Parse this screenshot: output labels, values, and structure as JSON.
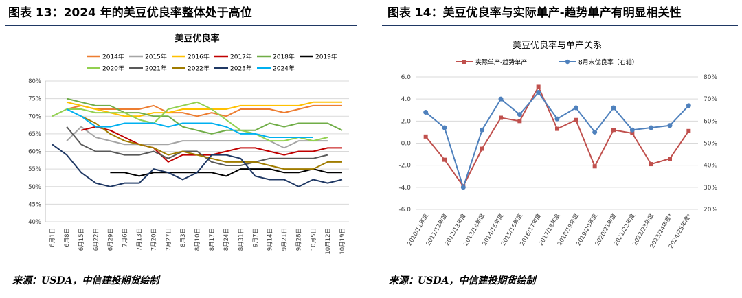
{
  "left": {
    "heading": "图表 13：2024 年的美豆优良率整体处于高位",
    "source": "来源：USDA，中信建投期货绘制",
    "chart_data": {
      "type": "line",
      "title": "美豆优良率",
      "yticks": [
        "40%",
        "45%",
        "50%",
        "55%",
        "60%",
        "65%",
        "70%",
        "75%",
        "80%"
      ],
      "ylim": [
        0.4,
        0.8
      ],
      "categories": [
        "6月1日",
        "6月8日",
        "6月15日",
        "6月22日",
        "6月29日",
        "7月6日",
        "7月13日",
        "7月20日",
        "7月27日",
        "8月3日",
        "8月10日",
        "8月17日",
        "8月24日",
        "8月31日",
        "9月7日",
        "9月14日",
        "9月21日",
        "9月28日",
        "10月5日",
        "10月12日",
        "10月19日"
      ],
      "legend_position": "top",
      "series": [
        {
          "name": "2014年",
          "color": "#ed7d31",
          "values": [
            null,
            0.72,
            0.73,
            0.72,
            0.72,
            0.72,
            0.72,
            0.73,
            0.71,
            0.71,
            0.7,
            0.71,
            0.7,
            0.72,
            0.72,
            0.72,
            0.71,
            0.72,
            0.73,
            0.73,
            0.73
          ]
        },
        {
          "name": "2015年",
          "color": "#a5a5a5",
          "values": [
            null,
            0.63,
            0.67,
            0.64,
            0.63,
            0.62,
            0.62,
            0.62,
            0.62,
            0.63,
            0.63,
            0.63,
            0.63,
            0.63,
            0.63,
            0.63,
            0.61,
            0.63,
            0.63,
            0.63,
            null
          ]
        },
        {
          "name": "2016年",
          "color": "#ffc000",
          "values": [
            null,
            0.74,
            0.73,
            0.72,
            0.71,
            0.7,
            0.7,
            0.71,
            0.71,
            0.72,
            0.72,
            0.72,
            0.72,
            0.73,
            0.73,
            0.73,
            0.73,
            0.73,
            0.74,
            0.74,
            0.74
          ]
        },
        {
          "name": "2017年",
          "color": "#c00000",
          "values": [
            null,
            null,
            0.66,
            0.67,
            0.66,
            0.64,
            0.62,
            0.61,
            0.57,
            0.59,
            0.59,
            0.59,
            0.6,
            0.61,
            0.61,
            0.6,
            0.59,
            0.6,
            0.6,
            0.61,
            0.61
          ]
        },
        {
          "name": "2018年",
          "color": "#70ad47",
          "values": [
            null,
            0.75,
            0.74,
            0.73,
            0.73,
            0.71,
            0.71,
            0.7,
            0.7,
            0.67,
            0.66,
            0.65,
            0.66,
            0.66,
            0.66,
            0.68,
            0.67,
            0.68,
            0.68,
            0.68,
            0.66
          ]
        },
        {
          "name": "2019年",
          "color": "#000000",
          "values": [
            null,
            null,
            null,
            null,
            0.54,
            0.54,
            0.53,
            0.54,
            0.54,
            0.54,
            0.54,
            0.54,
            0.53,
            0.55,
            0.55,
            0.55,
            0.54,
            0.54,
            0.55,
            0.54,
            0.54
          ]
        },
        {
          "name": "2020年",
          "color": "#92d050",
          "values": [
            0.7,
            0.72,
            0.72,
            0.71,
            0.71,
            0.71,
            0.69,
            0.68,
            0.72,
            0.73,
            0.74,
            0.72,
            0.69,
            0.66,
            0.65,
            0.63,
            0.63,
            0.64,
            0.63,
            0.64,
            null
          ]
        },
        {
          "name": "2021年",
          "color": "#595959",
          "values": [
            null,
            0.67,
            0.62,
            0.6,
            0.6,
            0.59,
            0.59,
            0.6,
            0.58,
            0.6,
            0.6,
            0.57,
            0.56,
            0.56,
            0.57,
            0.58,
            0.58,
            0.58,
            0.58,
            0.59,
            null
          ]
        },
        {
          "name": "2022年",
          "color": "#a07c00",
          "values": [
            null,
            null,
            0.7,
            0.68,
            0.65,
            0.63,
            0.62,
            0.61,
            0.59,
            0.6,
            0.59,
            0.58,
            0.57,
            0.57,
            0.57,
            0.56,
            0.55,
            0.55,
            0.55,
            0.57,
            0.57
          ]
        },
        {
          "name": "2023年",
          "color": "#1f3864",
          "values": [
            0.62,
            0.59,
            0.54,
            0.51,
            0.5,
            0.51,
            0.51,
            0.55,
            0.54,
            0.52,
            0.54,
            0.59,
            0.59,
            0.58,
            0.53,
            0.52,
            0.52,
            0.5,
            0.52,
            0.51,
            0.52
          ]
        },
        {
          "name": "2024年",
          "color": "#00b0f0",
          "values": [
            null,
            0.72,
            0.7,
            0.67,
            0.67,
            0.68,
            0.68,
            0.68,
            0.67,
            0.68,
            0.68,
            0.68,
            0.67,
            0.65,
            0.65,
            0.64,
            0.64,
            0.64,
            0.64,
            null,
            null
          ]
        }
      ]
    }
  },
  "right": {
    "heading": "图表 14：美豆优良率与实际单产-趋势单产有明显相关性",
    "source": "来源：USDA，中信建投期货绘制",
    "chart_data": {
      "type": "line",
      "title": "美豆优良率与单产关系",
      "categories": [
        "2010/11年度",
        "2011/12年度",
        "2012/13年度",
        "2013/14年度",
        "2014/15年度",
        "2015/16年度",
        "2016/17年度",
        "2017/18年度",
        "2018/19年度",
        "2019/20年度",
        "2020/21年度",
        "2021/22年度",
        "2022/23年度",
        "2023/24年度*",
        "2024/25年度*"
      ],
      "left_yticks": [
        "-6.0",
        "-4.0",
        "-2.0",
        "0.0",
        "2.0",
        "4.0",
        "6.0"
      ],
      "left_ylim": [
        -6.0,
        6.0
      ],
      "right_yticks": [
        "20%",
        "30%",
        "40%",
        "50%",
        "60%",
        "70%",
        "80%"
      ],
      "right_ylim": [
        0.2,
        0.8
      ],
      "legend_position": "top",
      "series": [
        {
          "name": "实际单产-趋势单产",
          "axis": "left",
          "color": "#c0504d",
          "marker": "square",
          "values": [
            0.6,
            -1.5,
            -3.9,
            -0.5,
            2.3,
            2.0,
            5.1,
            1.3,
            2.1,
            -2.1,
            1.2,
            0.9,
            -1.9,
            -1.4,
            1.1
          ]
        },
        {
          "name": "8月末优良率（右轴）",
          "axis": "right",
          "color": "#4f81bd",
          "marker": "circle",
          "values": [
            0.64,
            0.57,
            0.3,
            0.56,
            0.7,
            0.63,
            0.73,
            0.61,
            0.66,
            0.55,
            0.66,
            0.56,
            0.57,
            0.58,
            0.67
          ]
        }
      ]
    }
  }
}
